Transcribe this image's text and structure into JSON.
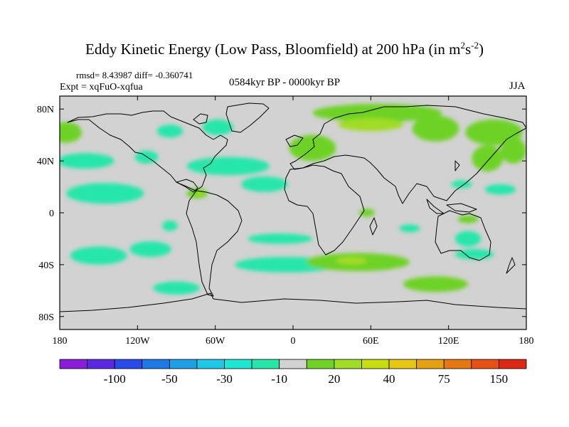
{
  "title": {
    "main": "Eddy Kinetic Energy (Low Pass, Bloomfield) at 200 hPa (in m",
    "sup1": "2",
    "mid": "s",
    "sup2": "-2",
    "end": ")"
  },
  "stats": "rmsd= 8.43987 diff= -0.360741",
  "expt": "Expt = xqFuO-xqfua",
  "period": "0584kyr BP - 0000kyr BP",
  "season": "JJA",
  "chart_data": {
    "type": "heatmap",
    "description_free": true,
    "x_range": [
      -180,
      180
    ],
    "y_range": [
      -90,
      90
    ],
    "x_ticks": [
      {
        "v": -180,
        "label": "180"
      },
      {
        "v": -120,
        "label": "120W"
      },
      {
        "v": -60,
        "label": "60W"
      },
      {
        "v": 0,
        "label": "0"
      },
      {
        "v": 60,
        "label": "60E"
      },
      {
        "v": 120,
        "label": "120E"
      },
      {
        "v": 180,
        "label": "180"
      }
    ],
    "y_ticks": [
      {
        "v": 80,
        "label": "80N"
      },
      {
        "v": 40,
        "label": "40N"
      },
      {
        "v": 0,
        "label": "0"
      },
      {
        "v": -40,
        "label": "40S"
      },
      {
        "v": -80,
        "label": "80S"
      }
    ],
    "background_color": "#d2d2d2",
    "colorbar": {
      "colors": [
        "#8a1ed8",
        "#5a28e0",
        "#2a4ce6",
        "#1e78e6",
        "#1ea0e6",
        "#1ec8e6",
        "#1ee6d2",
        "#28e6aa",
        "#d2d2d2",
        "#6ed228",
        "#a0dc28",
        "#c8dc14",
        "#e6c814",
        "#e6a014",
        "#e67814",
        "#e65014",
        "#dc2814"
      ],
      "labels": [
        {
          "boundary": 2,
          "label": "-100"
        },
        {
          "boundary": 4,
          "label": "-50"
        },
        {
          "boundary": 6,
          "label": "-30"
        },
        {
          "boundary": 8,
          "label": "-10"
        },
        {
          "boundary": 10,
          "label": "20"
        },
        {
          "boundary": 12,
          "label": "40"
        },
        {
          "boundary": 14,
          "label": "75"
        },
        {
          "boundary": 16,
          "label": "150"
        }
      ]
    },
    "regions": [
      {
        "name": "n-pacific-west",
        "lon": -175,
        "lat": 62,
        "rlon": 12,
        "rlat": 8,
        "color": "#6ed228"
      },
      {
        "name": "n-pacific",
        "lon": -160,
        "lat": 40,
        "rlon": 22,
        "rlat": 6,
        "color": "#28e6aa"
      },
      {
        "name": "e-pacific",
        "lon": -145,
        "lat": 15,
        "rlon": 30,
        "rlat": 8,
        "color": "#28e6aa"
      },
      {
        "name": "canada",
        "lon": -95,
        "lat": 63,
        "rlon": 10,
        "rlat": 5,
        "color": "#28e6aa"
      },
      {
        "name": "hudson",
        "lon": -58,
        "lat": 66,
        "rlon": 12,
        "rlat": 6,
        "color": "#28e6aa"
      },
      {
        "name": "us-west",
        "lon": -113,
        "lat": 43,
        "rlon": 9,
        "rlat": 5,
        "color": "#28e6aa"
      },
      {
        "name": "n-atlantic",
        "lon": -50,
        "lat": 36,
        "rlon": 32,
        "rlat": 7,
        "color": "#28e6aa"
      },
      {
        "name": "atlantic-tropic",
        "lon": -22,
        "lat": 22,
        "rlon": 18,
        "rlat": 6,
        "color": "#28e6aa"
      },
      {
        "name": "caribbean-green",
        "lon": -74,
        "lat": 15,
        "rlon": 8,
        "rlat": 4,
        "color": "#6ed228"
      },
      {
        "name": "caribbean-yellow",
        "lon": -72,
        "lat": 15,
        "rlon": 3,
        "rlat": 2,
        "color": "#a0dc28"
      },
      {
        "name": "s-america-c",
        "lon": -95,
        "lat": -10,
        "rlon": 6,
        "rlat": 4,
        "color": "#28e6aa"
      },
      {
        "name": "s-pacific",
        "lon": -150,
        "lat": -33,
        "rlon": 22,
        "rlat": 7,
        "color": "#28e6aa"
      },
      {
        "name": "s-pacific-2",
        "lon": -110,
        "lat": -28,
        "rlon": 16,
        "rlat": 6,
        "color": "#28e6aa"
      },
      {
        "name": "s-atlantic",
        "lon": -10,
        "lat": -20,
        "rlon": 25,
        "rlat": 4,
        "color": "#28e6aa"
      },
      {
        "name": "s-atlantic-low",
        "lon": -5,
        "lat": -40,
        "rlon": 40,
        "rlat": 6,
        "color": "#28e6aa"
      },
      {
        "name": "s-chile",
        "lon": -90,
        "lat": -58,
        "rlon": 18,
        "rlat": 5,
        "color": "#28e6aa"
      },
      {
        "name": "indian-s",
        "lon": 50,
        "lat": -38,
        "rlon": 40,
        "rlat": 7,
        "color": "#6ed228"
      },
      {
        "name": "indian-s-core",
        "lon": 45,
        "lat": -37,
        "rlon": 12,
        "rlat": 3,
        "color": "#a0dc28"
      },
      {
        "name": "indian-s2",
        "lon": 110,
        "lat": -55,
        "rlon": 25,
        "rlat": 6,
        "color": "#6ed228"
      },
      {
        "name": "arabia",
        "lon": 57,
        "lat": 0,
        "rlon": 6,
        "rlat": 3,
        "color": "#6ed228"
      },
      {
        "name": "indian-mid",
        "lon": 90,
        "lat": -12,
        "rlon": 8,
        "rlat": 3,
        "color": "#28e6aa"
      },
      {
        "name": "siberia",
        "lon": 65,
        "lat": 77,
        "rlon": 50,
        "rlat": 7,
        "color": "#6ed228"
      },
      {
        "name": "siberia-core",
        "lon": 60,
        "lat": 68,
        "rlon": 25,
        "rlat": 5,
        "color": "#a0dc28"
      },
      {
        "name": "europe",
        "lon": 15,
        "lat": 50,
        "rlon": 18,
        "rlat": 10,
        "color": "#6ed228"
      },
      {
        "name": "central-asia",
        "lon": 110,
        "lat": 65,
        "rlon": 18,
        "rlat": 10,
        "color": "#6ed228"
      },
      {
        "name": "nw-pacific",
        "lon": 155,
        "lat": 62,
        "rlon": 22,
        "rlat": 10,
        "color": "#6ed228"
      },
      {
        "name": "nw-pacific-lo",
        "lon": 150,
        "lat": 42,
        "rlon": 12,
        "rlat": 10,
        "color": "#6ed228"
      },
      {
        "name": "pacific-east",
        "lon": 170,
        "lat": 48,
        "rlon": 10,
        "rlat": 10,
        "color": "#6ed228"
      },
      {
        "name": "w-pacific-trop",
        "lon": 160,
        "lat": 18,
        "rlon": 12,
        "rlat": 4,
        "color": "#28e6aa"
      },
      {
        "name": "w-pacific-trop2",
        "lon": 130,
        "lat": 22,
        "rlon": 8,
        "rlat": 3,
        "color": "#28e6aa"
      },
      {
        "name": "australia-n",
        "lon": 135,
        "lat": -5,
        "rlon": 8,
        "rlat": 3,
        "color": "#6ed228"
      },
      {
        "name": "australia",
        "lon": 135,
        "lat": -20,
        "rlon": 10,
        "rlat": 6,
        "color": "#28e6aa"
      },
      {
        "name": "australia-c",
        "lon": 140,
        "lat": -32,
        "rlon": 15,
        "rlat": 4,
        "color": "#28e6aa"
      }
    ]
  }
}
